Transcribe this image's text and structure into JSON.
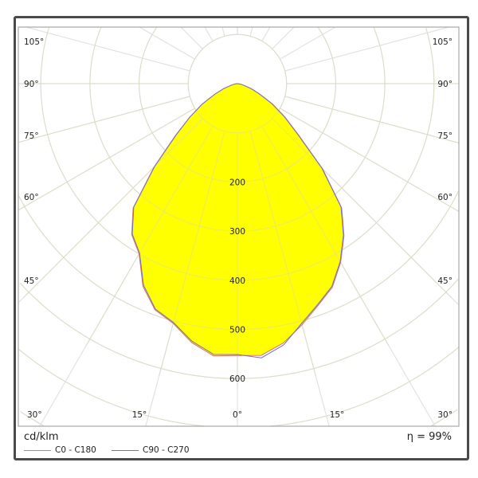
{
  "chart_data": {
    "type": "polar",
    "unit": "cd/klm",
    "efficiency": "η = 99%",
    "radial_ticks": [
      100,
      200,
      300,
      400,
      500,
      600,
      700,
      800,
      900
    ],
    "radial_tick_labels": [
      "200",
      "300",
      "400",
      "500",
      "600"
    ],
    "angle_labels_left": [
      "105°",
      "90°",
      "75°",
      "60°",
      "45°",
      "30°"
    ],
    "angle_labels_bottom": [
      "15°",
      "0°",
      "15°"
    ],
    "angle_labels_right": [
      "105°",
      "90°",
      "75°",
      "60°",
      "45°",
      "30°"
    ],
    "angle_step_deg": 15,
    "fill_color": "#ffff00",
    "gamma": [
      -90,
      -85,
      -80,
      -75,
      -70,
      -65,
      -60,
      -55,
      -50,
      -45,
      -40,
      -35,
      -30,
      -25,
      -20,
      -15,
      -10,
      -5,
      0,
      5,
      10,
      15,
      20,
      25,
      30,
      35,
      40,
      45,
      50,
      55,
      60,
      65,
      70,
      75,
      80,
      85,
      90
    ],
    "series": [
      {
        "name": "C0 - C180",
        "color": "#e07070",
        "values": [
          0,
          2,
          7,
          15,
          30,
          50,
          82,
          118,
          165,
          240,
          330,
          375,
          400,
          455,
          490,
          505,
          535,
          556,
          553,
          555,
          536,
          508,
          480,
          457,
          420,
          378,
          330,
          245,
          162,
          118,
          82,
          50,
          30,
          15,
          7,
          2,
          0
        ]
      },
      {
        "name": "C90 - C270",
        "color": "#7070c8",
        "values": [
          0,
          2,
          7,
          15,
          30,
          50,
          82,
          118,
          163,
          238,
          328,
          373,
          398,
          452,
          488,
          503,
          532,
          553,
          551,
          560,
          540,
          505,
          478,
          455,
          418,
          376,
          328,
          243,
          160,
          116,
          80,
          49,
          29,
          15,
          7,
          2,
          0
        ]
      }
    ]
  }
}
